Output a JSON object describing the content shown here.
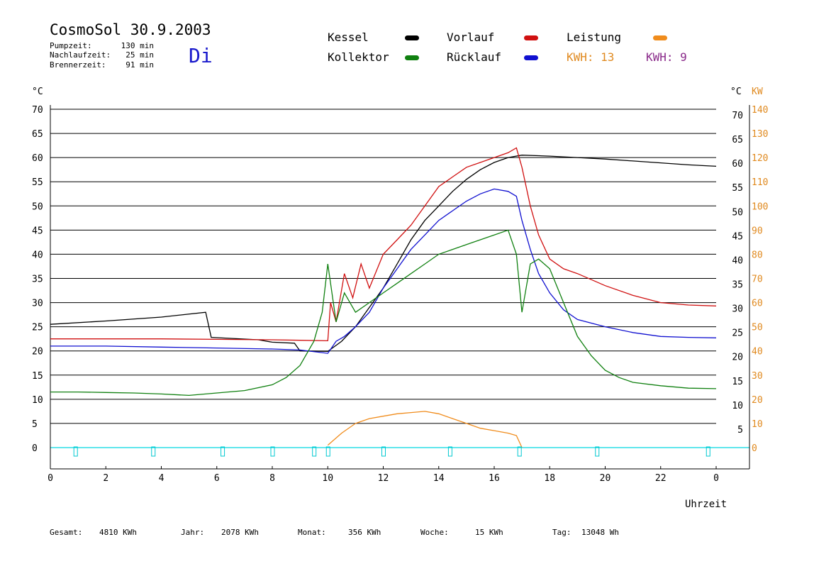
{
  "header": {
    "title": "CosmoSol 30.9.2003",
    "day": "Di",
    "info": [
      {
        "label": "Pumpzeit:",
        "value": "130 min"
      },
      {
        "label": "Nachlaufzeit:",
        "value": "25 min"
      },
      {
        "label": "Brennerzeit:",
        "value": "91 min"
      }
    ]
  },
  "legend": {
    "kessel": {
      "label": "Kessel",
      "color": "#000000"
    },
    "vorlauf": {
      "label": "Vorlauf",
      "color": "#d01010"
    },
    "leistung": {
      "label": "Leistung",
      "color": "#f08c1c"
    },
    "kollektor": {
      "label": "Kollektor",
      "color": "#108010"
    },
    "ruecklauf": {
      "label": "Rücklauf",
      "color": "#1010d0"
    },
    "kwh_orange": {
      "label": "KWH:",
      "value": "13",
      "color": "#e08a20"
    },
    "kwh_purple": {
      "label": "KWH:",
      "value": "9",
      "color": "#8a2a8a"
    }
  },
  "footer": {
    "gesamt_label": "Gesamt:",
    "gesamt_value": "4810 KWh",
    "jahr_label": "Jahr:",
    "jahr_value": "2078 KWh",
    "monat_label": "Monat:",
    "monat_value": "356 KWh",
    "woche_label": "Woche:",
    "woche_value": "15 KWh",
    "tag_label": "Tag:",
    "tag_value": "13048 Wh"
  },
  "chart_data": {
    "type": "line",
    "xlabel": "Uhrzeit",
    "ylabel_left": "°C",
    "ylabel_right_temp": "°C",
    "ylabel_right_power": "KW",
    "xlim": [
      0,
      24
    ],
    "ylim": [
      0,
      70
    ],
    "ylim_power": [
      0,
      140
    ],
    "grid": true,
    "x_ticks": [
      "0",
      "2",
      "4",
      "6",
      "8",
      "10",
      "12",
      "14",
      "16",
      "18",
      "20",
      "22",
      "0"
    ],
    "y_ticks_left": [
      "0",
      "5",
      "10",
      "15",
      "20",
      "25",
      "30",
      "35",
      "40",
      "45",
      "50",
      "55",
      "60",
      "65",
      "70"
    ],
    "y_ticks_right_temp": [
      "5",
      "10",
      "15",
      "20",
      "25",
      "30",
      "35",
      "40",
      "45",
      "50",
      "55",
      "60",
      "65",
      "70"
    ],
    "y_ticks_right_power": [
      "0",
      "10",
      "20",
      "30",
      "40",
      "50",
      "60",
      "70",
      "80",
      "90",
      "100",
      "110",
      "120",
      "130",
      "140"
    ],
    "series": [
      {
        "name": "Kessel",
        "color": "#000000",
        "points": [
          [
            0,
            25.5
          ],
          [
            2,
            26.2
          ],
          [
            4,
            27
          ],
          [
            5.6,
            28
          ],
          [
            5.8,
            22.8
          ],
          [
            6.5,
            22.6
          ],
          [
            7.5,
            22.3
          ],
          [
            8,
            21.8
          ],
          [
            8.8,
            21.6
          ],
          [
            9,
            20
          ],
          [
            10,
            19.9
          ],
          [
            10.5,
            22
          ],
          [
            11,
            25
          ],
          [
            11.5,
            29
          ],
          [
            12,
            33
          ],
          [
            12.5,
            38
          ],
          [
            13,
            43
          ],
          [
            13.5,
            47
          ],
          [
            14,
            50
          ],
          [
            14.5,
            53
          ],
          [
            15,
            55.5
          ],
          [
            15.5,
            57.5
          ],
          [
            16,
            59
          ],
          [
            16.5,
            60
          ],
          [
            17,
            60.5
          ],
          [
            18,
            60.3
          ],
          [
            19,
            60
          ],
          [
            20,
            59.7
          ],
          [
            21,
            59.3
          ],
          [
            22,
            58.9
          ],
          [
            23,
            58.5
          ],
          [
            24,
            58.2
          ]
        ]
      },
      {
        "name": "Vorlauf",
        "color": "#d01010",
        "points": [
          [
            0,
            22.5
          ],
          [
            2,
            22.5
          ],
          [
            4,
            22.5
          ],
          [
            6,
            22.4
          ],
          [
            8,
            22.3
          ],
          [
            9,
            22.2
          ],
          [
            10,
            22.1
          ],
          [
            10.1,
            30
          ],
          [
            10.3,
            26
          ],
          [
            10.6,
            36
          ],
          [
            10.9,
            31
          ],
          [
            11.2,
            38
          ],
          [
            11.5,
            33
          ],
          [
            12,
            40
          ],
          [
            12.5,
            43
          ],
          [
            13,
            46
          ],
          [
            13.5,
            50
          ],
          [
            14,
            54
          ],
          [
            14.5,
            56
          ],
          [
            15,
            58
          ],
          [
            15.5,
            59
          ],
          [
            16,
            60
          ],
          [
            16.5,
            61
          ],
          [
            16.8,
            62
          ],
          [
            17,
            58
          ],
          [
            17.3,
            50
          ],
          [
            17.6,
            44
          ],
          [
            18,
            39
          ],
          [
            18.5,
            37
          ],
          [
            19,
            36
          ],
          [
            20,
            33.5
          ],
          [
            21,
            31.5
          ],
          [
            22,
            30
          ],
          [
            23,
            29.5
          ],
          [
            24,
            29.3
          ]
        ]
      },
      {
        "name": "Rücklauf",
        "color": "#1010d0",
        "points": [
          [
            0,
            21
          ],
          [
            2,
            21
          ],
          [
            4,
            20.8
          ],
          [
            6,
            20.6
          ],
          [
            8,
            20.4
          ],
          [
            9,
            20.2
          ],
          [
            10,
            19.5
          ],
          [
            10.3,
            22
          ],
          [
            10.6,
            23
          ],
          [
            11,
            25
          ],
          [
            11.5,
            28
          ],
          [
            12,
            33
          ],
          [
            12.5,
            37
          ],
          [
            13,
            41
          ],
          [
            13.5,
            44
          ],
          [
            14,
            47
          ],
          [
            14.5,
            49
          ],
          [
            15,
            51
          ],
          [
            15.5,
            52.5
          ],
          [
            16,
            53.5
          ],
          [
            16.5,
            53
          ],
          [
            16.8,
            52
          ],
          [
            17,
            47
          ],
          [
            17.3,
            41
          ],
          [
            17.6,
            36
          ],
          [
            18,
            32
          ],
          [
            18.5,
            28.5
          ],
          [
            19,
            26.5
          ],
          [
            20,
            25
          ],
          [
            21,
            23.8
          ],
          [
            22,
            23
          ],
          [
            23,
            22.8
          ],
          [
            24,
            22.7
          ]
        ]
      },
      {
        "name": "Kollektor",
        "color": "#108010",
        "points": [
          [
            0,
            11.5
          ],
          [
            1,
            11.5
          ],
          [
            2,
            11.4
          ],
          [
            3,
            11.3
          ],
          [
            4,
            11.1
          ],
          [
            5,
            10.8
          ],
          [
            6,
            11.3
          ],
          [
            7,
            11.8
          ],
          [
            8,
            13
          ],
          [
            8.5,
            14.5
          ],
          [
            9,
            17
          ],
          [
            9.5,
            22
          ],
          [
            9.8,
            28
          ],
          [
            10,
            38
          ],
          [
            10.3,
            26
          ],
          [
            10.6,
            32
          ],
          [
            11,
            28
          ],
          [
            11.5,
            30
          ],
          [
            12,
            32
          ],
          [
            12.5,
            34
          ],
          [
            13,
            36
          ],
          [
            13.5,
            38
          ],
          [
            14,
            40
          ],
          [
            14.5,
            41
          ],
          [
            15,
            42
          ],
          [
            15.5,
            43
          ],
          [
            16,
            44
          ],
          [
            16.5,
            45
          ],
          [
            16.8,
            40
          ],
          [
            17,
            28
          ],
          [
            17.3,
            38
          ],
          [
            17.6,
            39
          ],
          [
            18,
            37
          ],
          [
            18.5,
            30
          ],
          [
            19,
            23
          ],
          [
            19.5,
            19
          ],
          [
            20,
            16
          ],
          [
            20.5,
            14.5
          ],
          [
            21,
            13.5
          ],
          [
            22,
            12.8
          ],
          [
            23,
            12.3
          ],
          [
            24,
            12.2
          ]
        ]
      },
      {
        "name": "Leistung",
        "color": "#f08c1c",
        "axis": "power",
        "points": [
          [
            10,
            1
          ],
          [
            10.5,
            6
          ],
          [
            11,
            10
          ],
          [
            11.5,
            12
          ],
          [
            12,
            13
          ],
          [
            12.5,
            14
          ],
          [
            13,
            14.5
          ],
          [
            13.5,
            15
          ],
          [
            14,
            14
          ],
          [
            14.5,
            12
          ],
          [
            15,
            10
          ],
          [
            15.5,
            8
          ],
          [
            16,
            7
          ],
          [
            16.5,
            6
          ],
          [
            16.8,
            5
          ],
          [
            17,
            0
          ]
        ]
      }
    ]
  }
}
